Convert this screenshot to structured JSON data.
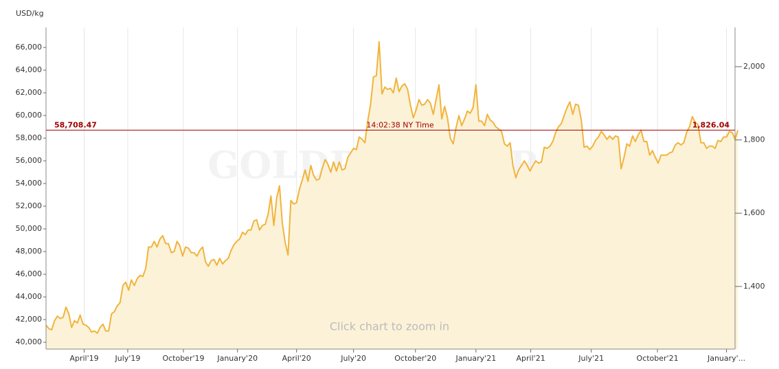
{
  "chart_data": {
    "type": "area",
    "y_label": "USD/kg",
    "watermark": "GOLDPRICE.ORG",
    "hint": "Click chart to zoom in",
    "grid": "x",
    "series": [
      {
        "color": "#f0b43c",
        "fill": "#fcf2d8",
        "values": [
          41500,
          41200,
          41100,
          41900,
          42300,
          42100,
          42200,
          43100,
          42500,
          41300,
          41900,
          41700,
          42400,
          41600,
          41500,
          41300,
          40900,
          41000,
          40800,
          41300,
          41600,
          41000,
          41000,
          42500,
          42700,
          43200,
          43500,
          45000,
          45300,
          44600,
          45500,
          45000,
          45600,
          45900,
          45800,
          46500,
          48400,
          48400,
          48900,
          48400,
          49100,
          49400,
          48700,
          48700,
          47900,
          48000,
          48900,
          48500,
          47600,
          48400,
          48300,
          47900,
          47900,
          47600,
          48100,
          48400,
          47100,
          46700,
          47200,
          47300,
          46800,
          47400,
          46900,
          47200,
          47400,
          48100,
          48600,
          48900,
          49100,
          49700,
          49500,
          49900,
          49900,
          50700,
          50800,
          49900,
          50300,
          50400,
          51300,
          52900,
          50300,
          52700,
          53800,
          50500,
          48800,
          47700,
          52500,
          52200,
          52300,
          53500,
          54300,
          55200,
          54200,
          55600,
          54700,
          54300,
          54400,
          55300,
          56100,
          55700,
          55000,
          55900,
          55100,
          55900,
          55200,
          55300,
          56300,
          56700,
          57100,
          57000,
          58100,
          57900,
          57600,
          59500,
          61000,
          63400,
          63500,
          66500,
          61900,
          62500,
          62300,
          62400,
          62000,
          63300,
          62100,
          62600,
          62800,
          62300,
          60900,
          59800,
          60500,
          61400,
          60900,
          61000,
          61400,
          61100,
          60100,
          61400,
          62700,
          59700,
          60800,
          59800,
          58000,
          57500,
          58900,
          60000,
          59100,
          59700,
          60400,
          60200,
          60700,
          62700,
          59500,
          59500,
          59100,
          60100,
          59600,
          59400,
          59000,
          58800,
          58600,
          57500,
          57300,
          57600,
          55600,
          54500,
          55200,
          55600,
          56000,
          55600,
          55100,
          55600,
          56000,
          55800,
          55900,
          57200,
          57100,
          57300,
          57700,
          58500,
          59000,
          59300,
          60000,
          60700,
          61200,
          60100,
          61000,
          60900,
          59600,
          57200,
          57300,
          57000,
          57300,
          57800,
          58100,
          58600,
          58300,
          57900,
          58200,
          57900,
          58200,
          58100,
          55300,
          56300,
          57500,
          57300,
          58200,
          57700,
          58300,
          58700,
          57700,
          57700,
          56500,
          56900,
          56300,
          55800,
          56500,
          56500,
          56500,
          56700,
          56800,
          57400,
          57600,
          57400,
          57600,
          58500,
          59000,
          59900,
          59400,
          59200,
          57600,
          57600,
          57100,
          57300,
          57300,
          57100,
          57800,
          57700,
          58100,
          58100,
          58600,
          58500,
          57900,
          58700
        ]
      }
    ],
    "xlim": [
      0,
      242
    ],
    "xticks": [
      {
        "value": 13.4,
        "label": "April'19"
      },
      {
        "value": 28.7,
        "label": "July'19"
      },
      {
        "value": 48.25,
        "label": "October'19"
      },
      {
        "value": 67.25,
        "label": "January'20"
      },
      {
        "value": 88,
        "label": "April'20"
      },
      {
        "value": 108,
        "label": "July'20"
      },
      {
        "value": 129.75,
        "label": "October'20"
      },
      {
        "value": 151,
        "label": "January'21"
      },
      {
        "value": 170.25,
        "label": "April'21"
      },
      {
        "value": 191.5,
        "label": "July'21"
      },
      {
        "value": 214.75,
        "label": "October'21"
      },
      {
        "value": 239,
        "label": "January'..."
      }
    ],
    "ylim": [
      39400,
      67760
    ],
    "yticks": [
      {
        "value": 40000,
        "label": "40,000"
      },
      {
        "value": 42000,
        "label": "42,000"
      },
      {
        "value": 44000,
        "label": "44,000"
      },
      {
        "value": 46000,
        "label": "46,000"
      },
      {
        "value": 48000,
        "label": "48,000"
      },
      {
        "value": 50000,
        "label": "50,000"
      },
      {
        "value": 52000,
        "label": "52,000"
      },
      {
        "value": 54000,
        "label": "54,000"
      },
      {
        "value": 56000,
        "label": "56,000"
      },
      {
        "value": 58000,
        "label": "58,000"
      },
      {
        "value": 60000,
        "label": "60,000"
      },
      {
        "value": 62000,
        "label": "62,000"
      },
      {
        "value": 64000,
        "label": "64,000"
      },
      {
        "value": 66000,
        "label": "66,000"
      }
    ],
    "y2lim": [
      1229,
      2107
    ],
    "y2ticks": [
      {
        "value": 1400,
        "label": "1,400"
      },
      {
        "value": 1600,
        "label": "1,600"
      },
      {
        "value": 1800,
        "label": "1,800"
      },
      {
        "value": 2000,
        "label": "2,000"
      }
    ],
    "reference_line": {
      "value": 58708.47,
      "label": "58,708.47",
      "value_y2": 1826.04,
      "label_y2": "1,826.04",
      "text": "14:02:38 NY Time",
      "color": "#a00000"
    }
  }
}
